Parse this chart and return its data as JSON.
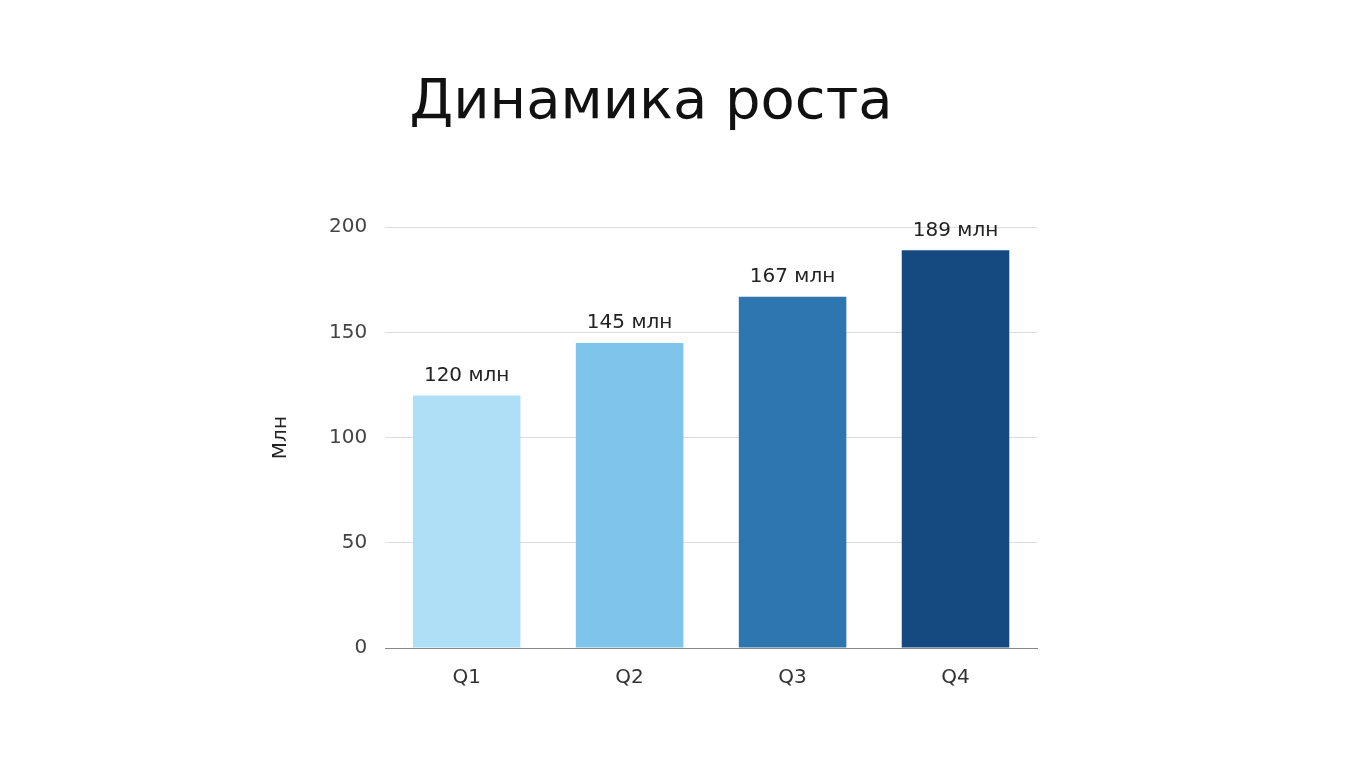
{
  "chart_data": {
    "type": "bar",
    "title": "Динамика роста",
    "ylabel": "Млн",
    "categories": [
      "Q1",
      "Q2",
      "Q3",
      "Q4"
    ],
    "values": [
      120,
      145,
      167,
      189
    ],
    "colors": [
      "#aedff7",
      "#7fc4ea",
      "#2e76b0",
      "#144a80"
    ],
    "value_labels": [
      "120 млн",
      "145 млн",
      "167 млн",
      "189 млн"
    ],
    "ylim": [
      0,
      200
    ],
    "yticks": [
      0,
      50,
      100,
      150,
      200
    ],
    "grid": "y",
    "legend": false
  }
}
